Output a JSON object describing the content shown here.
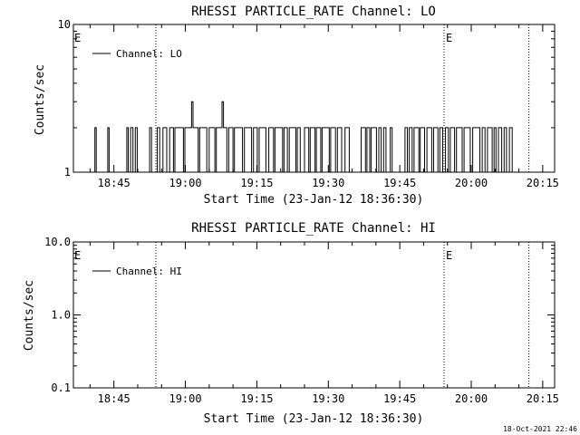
{
  "footer_timestamp": "18-Oct-2021 22:46",
  "chart_data": [
    {
      "type": "line",
      "title": "RHESSI PARTICLE_RATE Channel: LO",
      "xlabel": "Start Time (23-Jan-12 18:36:30)",
      "ylabel": "Counts/sec",
      "y_scale": "log",
      "ylim": [
        1,
        10
      ],
      "y_ticks": [
        "1",
        "10"
      ],
      "xlim_minutes": [
        0,
        101
      ],
      "x_tick_labels": [
        "18:45",
        "19:00",
        "19:15",
        "19:30",
        "19:45",
        "20:00",
        "20:15"
      ],
      "x_tick_minutes": [
        8.5,
        23.5,
        38.5,
        53.5,
        68.5,
        83.5,
        98.5
      ],
      "legend": {
        "entries": [
          "Channel: LO"
        ],
        "placement": "top-left"
      },
      "vlines": [
        {
          "minute": 17.3,
          "style": "dotted",
          "flag": ""
        },
        {
          "minute": 77.8,
          "style": "dotted",
          "flag": "E"
        },
        {
          "minute": 95.6,
          "style": "dotted",
          "flag": ""
        }
      ],
      "left_flag": "E",
      "series": [
        {
          "name": "Channel: LO",
          "step": true,
          "segments": [
            [
              [
                3.2,
                1
              ],
              [
                4.5,
                1
              ],
              [
                4.5,
                2
              ],
              [
                4.8,
                2
              ],
              [
                4.8,
                1
              ],
              [
                7.2,
                1
              ],
              [
                7.2,
                2
              ],
              [
                7.5,
                2
              ],
              [
                7.5,
                1
              ],
              [
                11.2,
                1
              ],
              [
                11.2,
                2
              ],
              [
                11.5,
                2
              ],
              [
                11.5,
                1
              ],
              [
                12.0,
                1
              ],
              [
                12.0,
                2
              ],
              [
                12.5,
                2
              ],
              [
                12.5,
                1
              ],
              [
                13.0,
                1
              ],
              [
                13.0,
                2
              ],
              [
                13.4,
                2
              ],
              [
                13.4,
                1
              ],
              [
                16.0,
                1
              ],
              [
                16.0,
                2
              ],
              [
                16.4,
                2
              ],
              [
                16.4,
                1
              ]
            ],
            [
              [
                17.6,
                1
              ],
              [
                17.6,
                2
              ],
              [
                18.1,
                2
              ],
              [
                18.1,
                1
              ],
              [
                18.8,
                1
              ],
              [
                18.8,
                2
              ],
              [
                19.6,
                2
              ],
              [
                19.6,
                1
              ],
              [
                20.2,
                1
              ],
              [
                20.2,
                2
              ],
              [
                21.0,
                2
              ],
              [
                21.0,
                1
              ],
              [
                21.3,
                1
              ],
              [
                21.3,
                2
              ],
              [
                23.1,
                2
              ],
              [
                23.1,
                1
              ],
              [
                23.4,
                1
              ],
              [
                23.4,
                2
              ],
              [
                24.8,
                2
              ],
              [
                24.8,
                3
              ],
              [
                25.1,
                3
              ],
              [
                25.1,
                2
              ],
              [
                26.2,
                2
              ],
              [
                26.2,
                1
              ],
              [
                26.5,
                1
              ],
              [
                26.5,
                2
              ],
              [
                28.0,
                2
              ],
              [
                28.0,
                1
              ],
              [
                28.5,
                1
              ],
              [
                28.5,
                2
              ],
              [
                29.7,
                2
              ],
              [
                29.7,
                1
              ],
              [
                30.0,
                1
              ],
              [
                30.0,
                2
              ],
              [
                31.2,
                2
              ],
              [
                31.2,
                3
              ],
              [
                31.5,
                3
              ],
              [
                31.5,
                2
              ],
              [
                32.2,
                2
              ],
              [
                32.2,
                1
              ],
              [
                32.6,
                1
              ],
              [
                32.6,
                2
              ],
              [
                33.5,
                2
              ],
              [
                33.5,
                1
              ],
              [
                33.8,
                1
              ],
              [
                33.8,
                2
              ],
              [
                35.5,
                2
              ],
              [
                35.5,
                1
              ],
              [
                35.9,
                1
              ],
              [
                35.9,
                2
              ],
              [
                37.4,
                2
              ],
              [
                37.4,
                1
              ],
              [
                37.8,
                1
              ],
              [
                37.8,
                2
              ],
              [
                38.6,
                2
              ],
              [
                38.6,
                1
              ],
              [
                39.0,
                1
              ],
              [
                39.0,
                2
              ],
              [
                40.4,
                2
              ],
              [
                40.4,
                1
              ],
              [
                41.0,
                1
              ],
              [
                41.0,
                2
              ],
              [
                42.0,
                2
              ],
              [
                42.0,
                1
              ],
              [
                42.3,
                1
              ],
              [
                42.3,
                2
              ],
              [
                43.9,
                2
              ],
              [
                43.9,
                1
              ],
              [
                44.2,
                1
              ],
              [
                44.2,
                2
              ],
              [
                44.9,
                2
              ],
              [
                44.9,
                1
              ],
              [
                45.3,
                1
              ],
              [
                45.3,
                2
              ],
              [
                46.7,
                2
              ],
              [
                46.7,
                1
              ],
              [
                47.0,
                1
              ],
              [
                47.0,
                2
              ],
              [
                47.6,
                2
              ],
              [
                47.6,
                1
              ],
              [
                48.5,
                1
              ],
              [
                48.5,
                2
              ],
              [
                49.4,
                2
              ],
              [
                49.4,
                1
              ],
              [
                49.7,
                1
              ],
              [
                49.7,
                2
              ],
              [
                50.7,
                2
              ],
              [
                50.7,
                1
              ],
              [
                51.0,
                1
              ],
              [
                51.0,
                2
              ],
              [
                51.9,
                2
              ],
              [
                51.9,
                1
              ],
              [
                52.2,
                1
              ],
              [
                52.2,
                2
              ],
              [
                53.7,
                2
              ],
              [
                53.7,
                1
              ],
              [
                54.0,
                1
              ],
              [
                54.0,
                2
              ],
              [
                55.0,
                2
              ],
              [
                55.0,
                1
              ],
              [
                55.4,
                1
              ],
              [
                55.4,
                2
              ],
              [
                56.3,
                2
              ],
              [
                56.3,
                1
              ],
              [
                57.0,
                1
              ],
              [
                57.0,
                2
              ],
              [
                57.9,
                2
              ],
              [
                57.9,
                1
              ],
              [
                60.4,
                1
              ],
              [
                60.4,
                2
              ],
              [
                61.3,
                2
              ],
              [
                61.3,
                1
              ],
              [
                61.6,
                1
              ],
              [
                61.6,
                2
              ],
              [
                62.2,
                2
              ],
              [
                62.2,
                1
              ],
              [
                62.5,
                1
              ],
              [
                62.5,
                2
              ],
              [
                63.6,
                2
              ],
              [
                63.6,
                1
              ],
              [
                64.1,
                1
              ],
              [
                64.1,
                2
              ],
              [
                64.6,
                2
              ],
              [
                64.6,
                1
              ],
              [
                65.1,
                1
              ],
              [
                65.1,
                2
              ],
              [
                65.6,
                2
              ],
              [
                65.6,
                1
              ],
              [
                66.5,
                1
              ],
              [
                66.5,
                2
              ],
              [
                66.9,
                2
              ],
              [
                66.9,
                1
              ],
              [
                69.6,
                1
              ],
              [
                69.6,
                2
              ],
              [
                70.1,
                2
              ],
              [
                70.1,
                1
              ],
              [
                70.5,
                1
              ],
              [
                70.5,
                2
              ],
              [
                71.1,
                2
              ],
              [
                71.1,
                1
              ],
              [
                71.5,
                1
              ],
              [
                71.5,
                2
              ],
              [
                72.5,
                2
              ],
              [
                72.5,
                1
              ],
              [
                72.8,
                1
              ],
              [
                72.8,
                2
              ],
              [
                73.7,
                2
              ],
              [
                73.7,
                1
              ],
              [
                74.2,
                1
              ],
              [
                74.2,
                2
              ],
              [
                75.2,
                2
              ],
              [
                75.2,
                1
              ],
              [
                75.6,
                1
              ],
              [
                75.6,
                2
              ],
              [
                76.5,
                2
              ],
              [
                76.5,
                1
              ],
              [
                76.9,
                1
              ],
              [
                76.9,
                2
              ],
              [
                77.5,
                2
              ],
              [
                77.5,
                1
              ]
            ],
            [
              [
                78.1,
                1
              ],
              [
                78.1,
                2
              ],
              [
                78.7,
                2
              ],
              [
                78.7,
                1
              ],
              [
                79.1,
                1
              ],
              [
                79.1,
                2
              ],
              [
                80.0,
                2
              ],
              [
                80.0,
                1
              ],
              [
                80.4,
                1
              ],
              [
                80.4,
                2
              ],
              [
                81.6,
                2
              ],
              [
                81.6,
                1
              ],
              [
                82.0,
                1
              ],
              [
                82.0,
                2
              ],
              [
                83.3,
                2
              ],
              [
                83.3,
                1
              ],
              [
                83.8,
                1
              ],
              [
                83.8,
                2
              ],
              [
                85.3,
                2
              ],
              [
                85.3,
                1
              ],
              [
                85.8,
                1
              ],
              [
                85.8,
                2
              ],
              [
                86.4,
                2
              ],
              [
                86.4,
                1
              ],
              [
                86.9,
                1
              ],
              [
                86.9,
                2
              ],
              [
                87.9,
                2
              ],
              [
                87.9,
                1
              ],
              [
                88.3,
                1
              ],
              [
                88.3,
                2
              ],
              [
                88.7,
                2
              ],
              [
                88.7,
                1
              ],
              [
                89.2,
                1
              ],
              [
                89.2,
                2
              ],
              [
                89.9,
                2
              ],
              [
                89.9,
                1
              ],
              [
                90.4,
                1
              ],
              [
                90.4,
                2
              ],
              [
                90.9,
                2
              ],
              [
                90.9,
                1
              ],
              [
                91.5,
                1
              ],
              [
                91.5,
                2
              ],
              [
                92.1,
                2
              ],
              [
                92.1,
                1
              ],
              [
                93.2,
                1
              ]
            ]
          ]
        }
      ]
    },
    {
      "type": "line",
      "title": "RHESSI PARTICLE_RATE Channel: HI",
      "xlabel": "Start Time (23-Jan-12 18:36:30)",
      "ylabel": "Counts/sec",
      "y_scale": "log",
      "ylim": [
        0.1,
        10
      ],
      "y_ticks": [
        "0.1",
        "1.0",
        "10.0"
      ],
      "xlim_minutes": [
        0,
        101
      ],
      "x_tick_labels": [
        "18:45",
        "19:00",
        "19:15",
        "19:30",
        "19:45",
        "20:00",
        "20:15"
      ],
      "x_tick_minutes": [
        8.5,
        23.5,
        38.5,
        53.5,
        68.5,
        83.5,
        98.5
      ],
      "legend": {
        "entries": [
          "Channel: HI"
        ],
        "placement": "top-left"
      },
      "vlines": [
        {
          "minute": 17.3,
          "style": "dotted",
          "flag": ""
        },
        {
          "minute": 77.8,
          "style": "dotted",
          "flag": "E"
        },
        {
          "minute": 95.6,
          "style": "dotted",
          "flag": ""
        }
      ],
      "left_flag": "E",
      "series": [
        {
          "name": "Channel: HI",
          "step": true,
          "segments": []
        }
      ]
    }
  ]
}
